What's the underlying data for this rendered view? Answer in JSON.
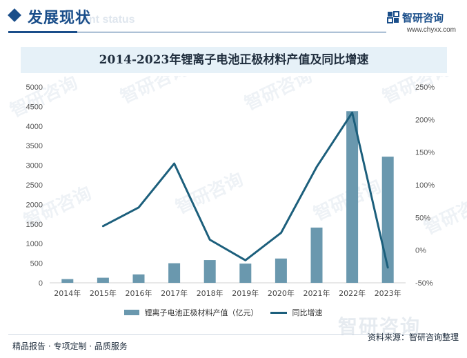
{
  "header": {
    "title": "发展现状",
    "subtitle": "ent status",
    "brand_name": "智研咨询",
    "brand_url": "www.chyxx.com"
  },
  "watermark": {
    "text": "智研咨询"
  },
  "colors": {
    "brand": "#1a4e8a",
    "bar": "#6a98ae",
    "line": "#1c5f7c",
    "title_band": "#e6f1f8"
  },
  "chart_data": {
    "type": "bar",
    "title": "2014-2023年锂离子电池正极材料产值及同比增速",
    "categories": [
      "2014年",
      "2015年",
      "2016年",
      "2017年",
      "2018年",
      "2019年",
      "2020年",
      "2021年",
      "2022年",
      "2023年"
    ],
    "series": [
      {
        "name": "锂离子电池正极材料产值（亿元）",
        "type": "bar",
        "axis": "left",
        "values": [
          95,
          130,
          215,
          500,
          580,
          490,
          620,
          1410,
          4380,
          3220
        ]
      },
      {
        "name": "同比增速",
        "type": "line",
        "axis": "right",
        "values": [
          null,
          36.8,
          65.4,
          132.6,
          16,
          -15.5,
          26.5,
          127.4,
          210.6,
          -26.5
        ]
      }
    ],
    "y_left": {
      "min": 0,
      "max": 5000,
      "ticks": [
        0,
        500,
        1000,
        1500,
        2000,
        2500,
        3000,
        3500,
        4000,
        4500,
        5000
      ]
    },
    "y_right": {
      "min": -50,
      "max": 250,
      "ticks": [
        -50,
        0,
        50,
        100,
        150,
        200,
        250
      ],
      "unit": "%"
    },
    "legend_position": "bottom"
  },
  "footer": {
    "left_text": "精品报告 · 专项定制 · 品质服务",
    "source_text": "资料来源：智研咨询整理"
  }
}
